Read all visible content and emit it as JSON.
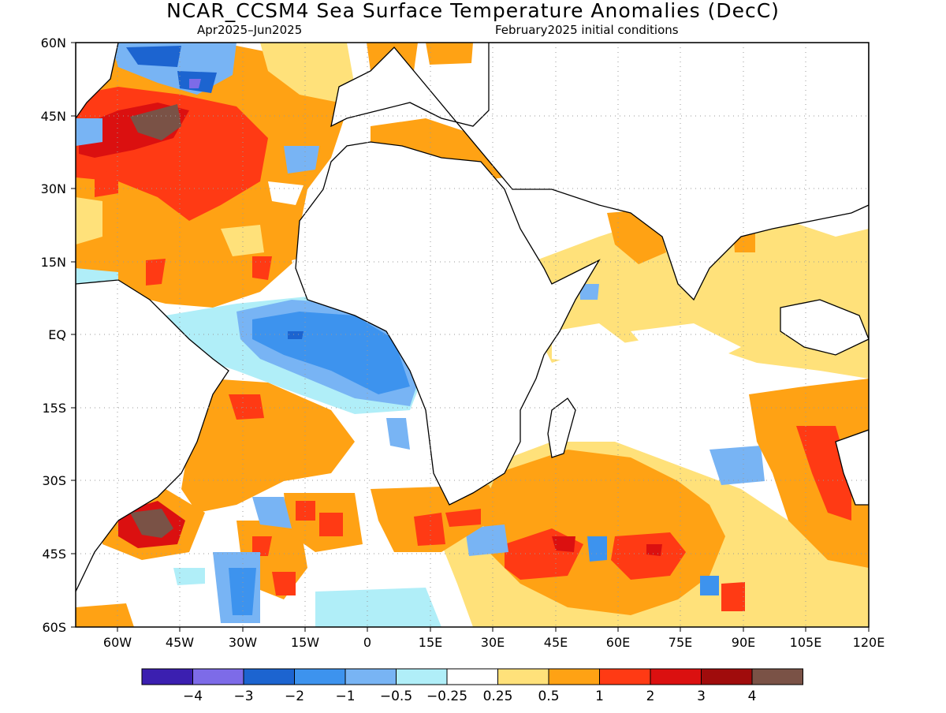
{
  "title": "NCAR_CCSM4 Sea Surface Temperature Anomalies (DecC)",
  "subtitle_left": "Apr2025–Jun2025",
  "subtitle_right": "February2025 initial conditions",
  "map": {
    "lon_range": [
      -70,
      120
    ],
    "lat_range": [
      -60,
      60
    ],
    "lat_ticks": [
      "60N",
      "45N",
      "30N",
      "15N",
      "EQ",
      "15S",
      "30S",
      "45S",
      "60S"
    ],
    "lon_ticks": [
      "60W",
      "45W",
      "30W",
      "15W",
      "0",
      "15E",
      "30E",
      "45E",
      "60E",
      "75E",
      "90E",
      "105E",
      "120E"
    ],
    "land_color": "#ffffff",
    "grid": "dotted"
  },
  "colorbar": {
    "colors": [
      "#3b1fb0",
      "#7d6be8",
      "#1c64d0",
      "#3d93ee",
      "#78b4f4",
      "#b0eef8",
      "#ffffff",
      "#ffe17a",
      "#ffa214",
      "#ff3a14",
      "#db1010",
      "#a00c0c",
      "#7a5246"
    ],
    "labels": [
      "−4",
      "−3",
      "−2",
      "−1",
      "−0.5",
      "−0.25",
      "0.25",
      "0.5",
      "1",
      "2",
      "3",
      "4"
    ]
  }
}
